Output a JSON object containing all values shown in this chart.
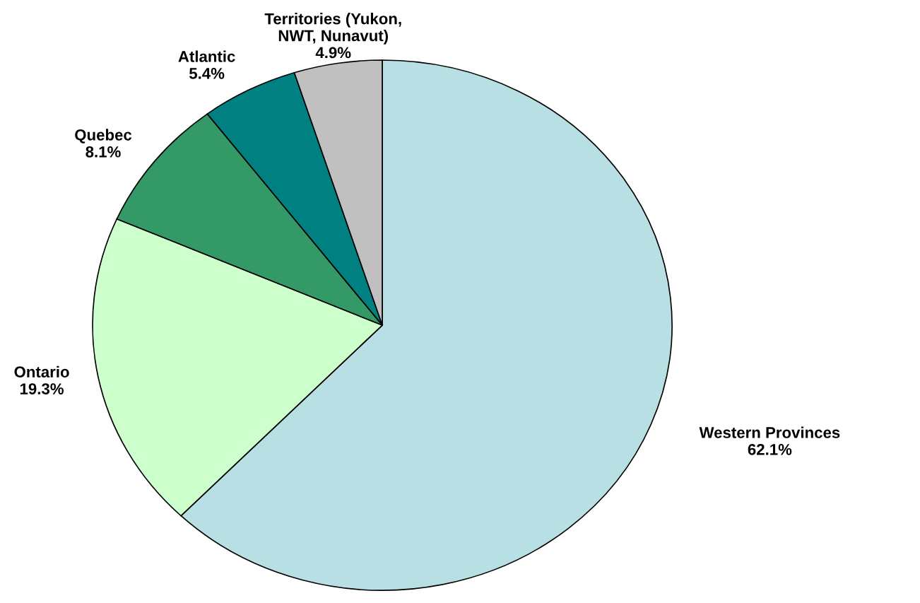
{
  "chart_data": {
    "type": "pie",
    "categories": [
      "Western Provinces",
      "Ontario",
      "Quebec",
      "Atlantic",
      "Territories (Yukon,\nNWT, Nunavut)"
    ],
    "values": [
      62.1,
      19.3,
      8.1,
      5.4,
      4.9
    ],
    "value_labels": [
      "62.1%",
      "19.3%",
      "8.1%",
      "5.4%",
      "4.9%"
    ],
    "colors": [
      "#b8dfe3",
      "#ccffcc",
      "#339966",
      "#008080",
      "#c0c0c0"
    ],
    "legend": false
  }
}
